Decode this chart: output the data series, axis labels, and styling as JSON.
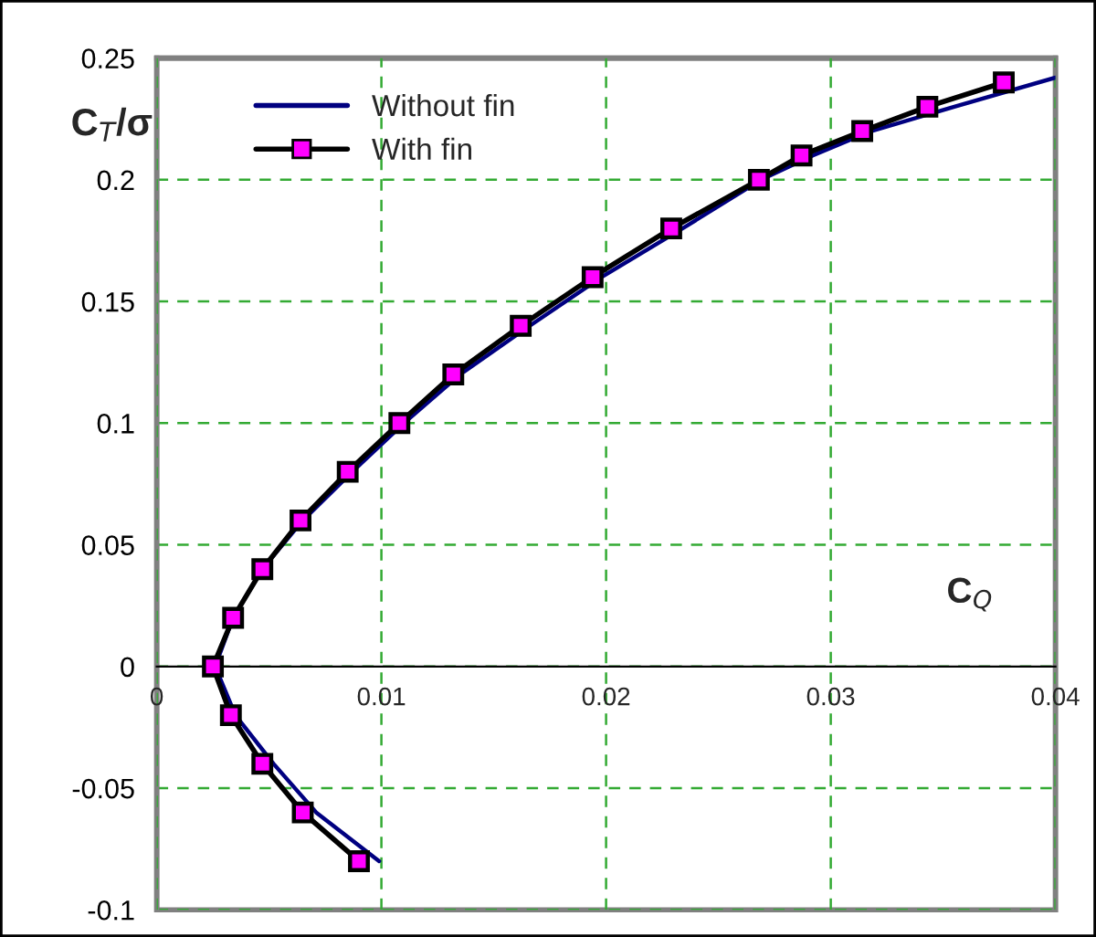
{
  "chart_data": {
    "type": "line",
    "xlabel": "C$_{Q}$",
    "ylabel": "C$_{T}$/σ",
    "xlim": [
      0,
      0.04
    ],
    "xticks": [
      0,
      0.01,
      0.02,
      0.03,
      0.04
    ],
    "ylim": [
      -0.1,
      0.25
    ],
    "yticks": [
      -0.1,
      -0.05,
      0,
      0.05,
      0.1,
      0.15,
      0.2,
      0.25
    ],
    "grid": true,
    "legend": "top left",
    "series": [
      {
        "name": "Without fin",
        "color": "#000080",
        "marker": "none",
        "x": [
          0.0099,
          0.0071,
          0.0052,
          0.0035,
          0.0026,
          0.0034,
          0.0047,
          0.0065,
          0.0087,
          0.011,
          0.0135,
          0.0166,
          0.0198,
          0.0234,
          0.0269,
          0.0292,
          0.0318,
          0.0355,
          0.04
        ],
        "values": [
          -0.08,
          -0.06,
          -0.04,
          -0.02,
          0,
          0.02,
          0.04,
          0.06,
          0.08,
          0.1,
          0.12,
          0.14,
          0.16,
          0.18,
          0.2,
          0.21,
          0.22,
          0.23,
          0.242
        ]
      },
      {
        "name": "With fin",
        "color": "#000000",
        "marker": "square",
        "x": [
          0.009,
          0.0065,
          0.0047,
          0.0033,
          0.0025,
          0.0034,
          0.0047,
          0.0064,
          0.0085,
          0.0108,
          0.0132,
          0.0162,
          0.0194,
          0.0229,
          0.0268,
          0.0287,
          0.0314,
          0.0343,
          0.0377
        ],
        "values": [
          -0.08,
          -0.06,
          -0.04,
          -0.02,
          0,
          0.02,
          0.04,
          0.06,
          0.08,
          0.1,
          0.12,
          0.14,
          0.16,
          0.18,
          0.2,
          0.21,
          0.22,
          0.23,
          0.24
        ]
      }
    ]
  }
}
